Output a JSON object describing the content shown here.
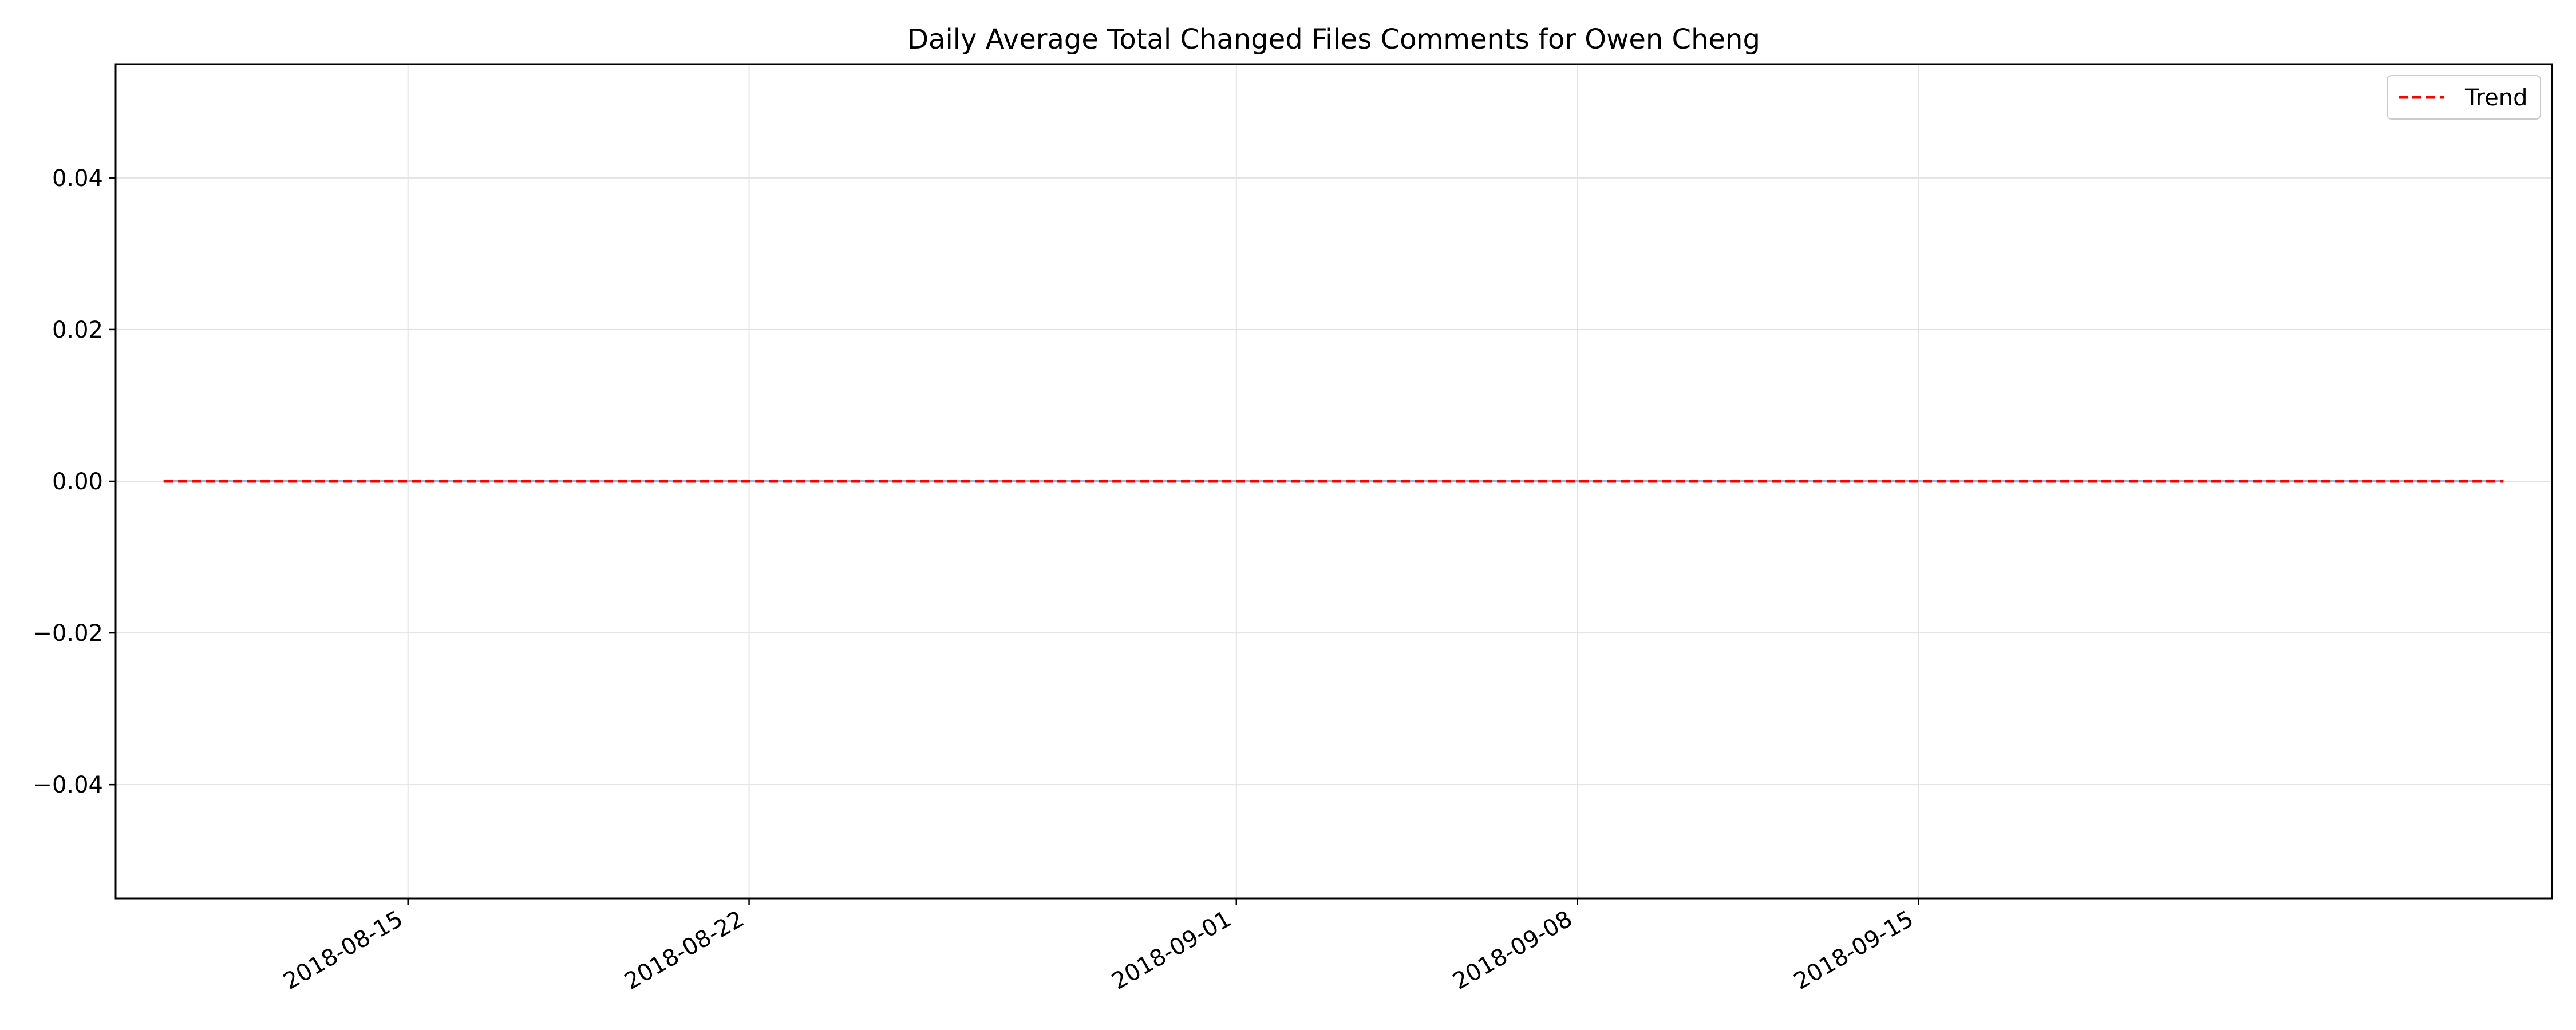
{
  "chart_data": {
    "type": "line",
    "title": "Daily Average Total Changed Files Comments for Owen Cheng",
    "xlabel": "",
    "ylabel": "",
    "x_type": "date",
    "xlim": [
      "2018-08-09",
      "2018-09-28"
    ],
    "ylim": [
      -0.055,
      0.055
    ],
    "grid": true,
    "legend_placement": "top-right",
    "x_ticks": [
      "2018-08-15",
      "2018-08-22",
      "2018-09-01",
      "2018-09-08",
      "2018-09-15"
    ],
    "y_ticks": [
      -0.04,
      -0.02,
      0.0,
      0.02,
      0.04
    ],
    "y_tick_labels": [
      "−0.04",
      "−0.02",
      "0.00",
      "0.02",
      "0.04"
    ],
    "x_start": "2018-08-10",
    "x_end": "2018-09-27",
    "series": [
      {
        "color": "#8fb8de",
        "style": "solid",
        "values": [
          0,
          0,
          0,
          0,
          0,
          0,
          0,
          0,
          0,
          0,
          0,
          0,
          0,
          0,
          0,
          0,
          0,
          0,
          0,
          0,
          0,
          0,
          0,
          0,
          0,
          0,
          0,
          0,
          0,
          0,
          0,
          0,
          0,
          0,
          0,
          0,
          0,
          0,
          0,
          0,
          0,
          0,
          0,
          0,
          0,
          0,
          0,
          0,
          0
        ]
      },
      {
        "name": "Trend",
        "color": "#ff0000",
        "style": "dashed",
        "x": [
          "2018-08-10",
          "2018-09-27"
        ],
        "values": [
          0,
          0
        ]
      }
    ]
  },
  "legend": {
    "items": [
      {
        "label": "Trend",
        "color": "#ff0000",
        "style": "dashed"
      }
    ]
  }
}
